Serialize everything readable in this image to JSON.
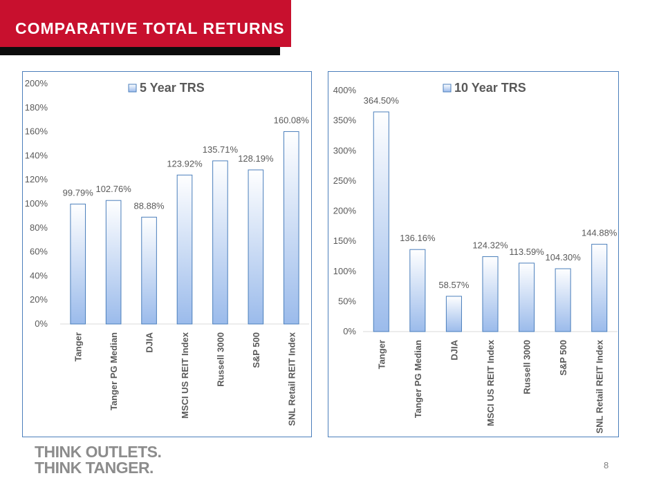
{
  "header": {
    "title": "COMPARATIVE TOTAL RETURNS"
  },
  "colors": {
    "brand_red": "#c8102e",
    "bar_top": "#ffffff",
    "bar_bottom": "#9bbbeb",
    "bar_stroke": "#4a7ebb",
    "frame": "#4a7ebb",
    "label_gray": "#595959"
  },
  "chart_data": [
    {
      "type": "bar",
      "title": "5 Year TRS",
      "legend": "top-center",
      "categories": [
        "Tanger",
        "Tanger PG Median",
        "DJIA",
        "MSCI US REIT Index",
        "Russell 3000",
        "S&P 500",
        "SNL Retail REIT Index"
      ],
      "series": [
        {
          "name": "5 Year TRS",
          "values": [
            99.79,
            102.76,
            88.88,
            123.92,
            135.71,
            128.19,
            160.08
          ]
        }
      ],
      "data_labels": [
        "99.79%",
        "102.76%",
        "88.88%",
        "123.92%",
        "135.71%",
        "128.19%",
        "160.08%"
      ],
      "ylim": [
        0,
        200
      ],
      "yticks": [
        "0%",
        "20%",
        "40%",
        "60%",
        "80%",
        "100%",
        "120%",
        "140%",
        "160%",
        "180%",
        "200%"
      ],
      "grid": false
    },
    {
      "type": "bar",
      "title": "10 Year TRS",
      "legend": "top-center",
      "categories": [
        "Tanger",
        "Tanger PG Median",
        "DJIA",
        "MSCI US REIT Index",
        "Russell 3000",
        "S&P 500",
        "SNL Retail REIT Index"
      ],
      "series": [
        {
          "name": "10 Year TRS",
          "values": [
            364.5,
            136.16,
            58.57,
            124.32,
            113.59,
            104.3,
            144.88
          ]
        }
      ],
      "data_labels": [
        "364.50%",
        "136.16%",
        "58.57%",
        "124.32%",
        "113.59%",
        "104.30%",
        "144.88%"
      ],
      "ylim": [
        0,
        400
      ],
      "yticks": [
        "0%",
        "50%",
        "100%",
        "150%",
        "200%",
        "250%",
        "300%",
        "350%",
        "400%"
      ],
      "grid": false
    }
  ],
  "footer": {
    "logo_line1": "THINK OUTLETS.",
    "logo_line2": "THINK TANGER.",
    "page_number": "8"
  }
}
